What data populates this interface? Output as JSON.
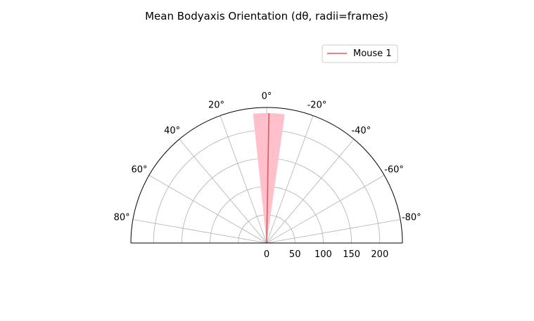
{
  "chart_data": {
    "type": "polar-half",
    "title": "Mean Bodyaxis Orientation (dθ, radii=frames)",
    "angle_range_deg": [
      -90,
      90
    ],
    "angle_ticks": [
      {
        "value": 80,
        "label": "80°"
      },
      {
        "value": 60,
        "label": "60°"
      },
      {
        "value": 40,
        "label": "40°"
      },
      {
        "value": 20,
        "label": "20°"
      },
      {
        "value": 0,
        "label": "0°"
      },
      {
        "value": -20,
        "label": "-20°"
      },
      {
        "value": -40,
        "label": "-40°"
      },
      {
        "value": -60,
        "label": "-60°"
      },
      {
        "value": -80,
        "label": "-80°"
      }
    ],
    "radial_ticks": [
      {
        "value": 0,
        "label": "0"
      },
      {
        "value": 50,
        "label": "50"
      },
      {
        "value": 100,
        "label": "100"
      },
      {
        "value": 150,
        "label": "150"
      },
      {
        "value": 200,
        "label": "200"
      }
    ],
    "rlim": [
      0,
      240
    ],
    "grid": true,
    "legend_position": "top-right",
    "series": [
      {
        "name": "Mouse 1",
        "color": "#e05a5a",
        "mean_angle_deg": -1,
        "mean_radius": 230,
        "wedge_angle_min_deg": -8,
        "wedge_angle_max_deg": 6,
        "wedge_radius": 230,
        "wedge_color": "#ffc0cb"
      }
    ]
  }
}
